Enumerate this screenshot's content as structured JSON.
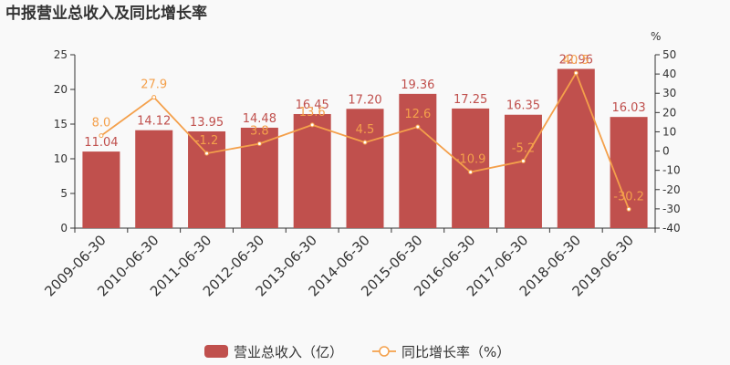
{
  "chart_data": {
    "type": "bar",
    "title": "中报营业总收入及同比增长率",
    "categories": [
      "2009-06-30",
      "2010-06-30",
      "2011-06-30",
      "2012-06-30",
      "2013-06-30",
      "2014-06-30",
      "2015-06-30",
      "2016-06-30",
      "2017-06-30",
      "2018-06-30",
      "2019-06-30"
    ],
    "series": [
      {
        "name": "营业总收入（亿）",
        "type": "bar",
        "axis": "left",
        "values": [
          11.04,
          14.12,
          13.95,
          14.48,
          16.45,
          17.2,
          19.36,
          17.25,
          16.35,
          22.96,
          16.03
        ],
        "labels": [
          "11.04",
          "14.12",
          "13.95",
          "14.48",
          "16.45",
          "17.20",
          "19.36",
          "17.25",
          "16.35",
          "22.96",
          "16.03"
        ]
      },
      {
        "name": "同比增长率（%）",
        "type": "line",
        "axis": "right",
        "values": [
          8.0,
          27.9,
          -1.2,
          3.8,
          13.6,
          4.5,
          12.6,
          -10.9,
          -5.2,
          40.5,
          -30.2
        ],
        "labels": [
          "8.0",
          "27.9",
          "-1.2",
          "3.8",
          "13.6",
          "4.5",
          "12.6",
          "-10.9",
          "-5.2",
          "40.5",
          "-30.2"
        ]
      }
    ],
    "y_left": {
      "lim": [
        0,
        25
      ],
      "ticks": [
        "0",
        "5",
        "10",
        "15",
        "20",
        "25"
      ]
    },
    "y_right": {
      "lim": [
        -40,
        50
      ],
      "unit": "%",
      "ticks": [
        "-40",
        "-30",
        "-20",
        "-10",
        "0",
        "10",
        "20",
        "30",
        "40",
        "50"
      ]
    },
    "grid": false,
    "legend": "bottom",
    "colors": {
      "bar": "#c0504d",
      "line": "#f4a04b",
      "background": "#f9f9f9",
      "text": "#333333",
      "axis": "#333333"
    }
  }
}
